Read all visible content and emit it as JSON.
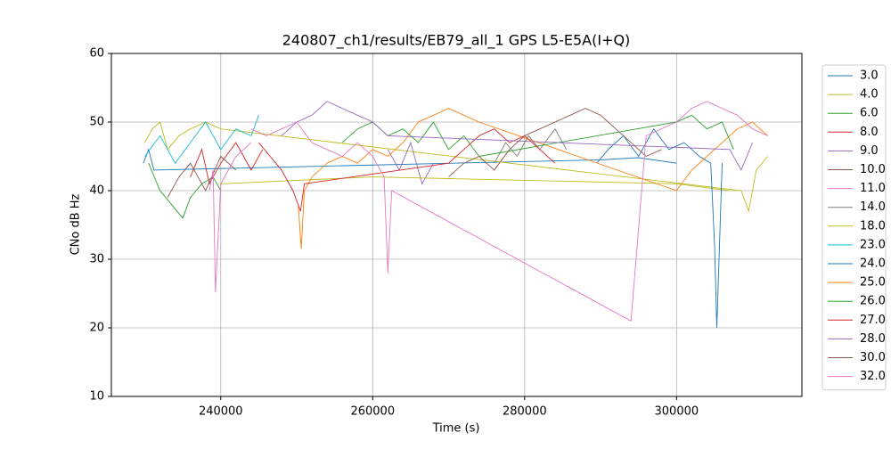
{
  "chart_data": {
    "type": "line",
    "title": "240807_ch1/results/EB79_all_1 GPS L5-E5A(I+Q)",
    "x_label": "Time (s)",
    "y_label": "CNo dB Hz",
    "xlim": [
      225600,
      316500
    ],
    "xticks": [
      240000,
      260000,
      280000,
      300000
    ],
    "ylim": [
      10,
      60
    ],
    "yticks": [
      10,
      20,
      30,
      40,
      50,
      60
    ],
    "grid": true,
    "legend": "outside-right",
    "series": [
      {
        "name": "3.0",
        "color": "#1f77b4",
        "x": [
          229800,
          230500,
          231200,
          290000,
          295000,
          300000
        ],
        "values": [
          44,
          46,
          43,
          44.5,
          44.8,
          44
        ]
      },
      {
        "name": "4.0",
        "color": "#bcbd22",
        "x": [
          230000,
          231000,
          232000,
          233000,
          234500,
          236000,
          238000,
          240000,
          308500,
          309500,
          310500,
          312000
        ],
        "values": [
          47,
          49,
          50,
          46,
          48,
          49,
          50,
          49,
          40,
          37,
          43,
          45
        ]
      },
      {
        "name": "6.0",
        "color": "#2ca02c",
        "x": [
          230500,
          232000,
          233500,
          235000,
          236000,
          237500,
          239000,
          240000
        ],
        "values": [
          44,
          40,
          38,
          36,
          39,
          41,
          42,
          40
        ]
      },
      {
        "name": "8.0",
        "color": "#d62728",
        "x": [
          236000,
          237500,
          238500,
          240000,
          242000,
          244000,
          245500
        ],
        "values": [
          42,
          46,
          41,
          44,
          47,
          43,
          46
        ]
      },
      {
        "name": "9.0",
        "color": "#9467bd",
        "x": [
          262000,
          263500,
          265000,
          266500,
          268000
        ],
        "values": [
          46,
          43,
          47,
          41,
          44
        ]
      },
      {
        "name": "10.0",
        "color": "#8c564b",
        "x": [
          233000,
          234500,
          236000,
          238000,
          240000,
          242000
        ],
        "values": [
          39,
          42,
          44,
          40,
          45,
          43
        ]
      },
      {
        "name": "11.0",
        "color": "#e377c2",
        "x": [
          238500,
          239000,
          239300,
          240000,
          242000,
          244000
        ],
        "values": [
          40,
          43,
          25.2,
          41,
          45,
          47
        ]
      },
      {
        "name": "14.0",
        "color": "#7f7f7f",
        "x": [
          276000,
          277500,
          279000,
          280500,
          282000,
          284000,
          285500
        ],
        "values": [
          44,
          47,
          45,
          48,
          46,
          49,
          46
        ]
      },
      {
        "name": "18.0",
        "color": "#bcbd22",
        "x": [
          240000,
          260000,
          280000,
          300000,
          307000
        ],
        "values": [
          41,
          42,
          41.5,
          41,
          40
        ]
      },
      {
        "name": "23.0",
        "color": "#17becf",
        "x": [
          230000,
          232000,
          234000,
          236000,
          238000,
          240000,
          242000,
          244000,
          245000
        ],
        "values": [
          45,
          48,
          44,
          47,
          50,
          46,
          49,
          48,
          51
        ]
      },
      {
        "name": "24.0",
        "color": "#1f77b4",
        "x": [
          289500,
          291000,
          293000,
          295000,
          297000,
          299000,
          301000,
          303000,
          304500,
          305000,
          305300,
          306000
        ],
        "values": [
          44,
          46,
          48,
          45,
          49,
          46,
          47,
          45,
          44,
          32,
          20,
          44
        ]
      },
      {
        "name": "25.0",
        "color": "#ff7f0e",
        "x": [
          250200,
          250600,
          251000,
          252000,
          254000,
          256000,
          258000,
          260000,
          262000,
          264000,
          266000,
          268000,
          270000,
          272000,
          274000,
          300000,
          302000,
          304000,
          306000,
          308000,
          310000,
          312000
        ],
        "values": [
          38,
          31.5,
          40,
          42,
          44,
          45,
          44,
          46,
          45,
          47,
          50,
          51,
          52,
          51,
          50,
          40,
          43,
          45,
          47,
          49,
          50,
          48
        ]
      },
      {
        "name": "26.0",
        "color": "#2ca02c",
        "x": [
          256000,
          258000,
          260000,
          262000,
          264000,
          266000,
          268000,
          270000,
          272000,
          274000,
          300000,
          302000,
          304000,
          306000,
          307500
        ],
        "values": [
          47,
          49,
          50,
          48,
          49,
          47,
          50,
          46,
          48,
          45,
          50,
          51,
          49,
          50,
          46
        ]
      },
      {
        "name": "27.0",
        "color": "#d62728",
        "x": [
          245000,
          246500,
          248000,
          249500,
          250500,
          251000,
          270000,
          272000,
          274000,
          276000,
          278000,
          280000,
          282000,
          284000
        ],
        "values": [
          47,
          45,
          43,
          40,
          37,
          41,
          44,
          46,
          48,
          49,
          47,
          48,
          46,
          44
        ]
      },
      {
        "name": "28.0",
        "color": "#9467bd",
        "x": [
          248000,
          250000,
          252000,
          254000,
          256000,
          258000,
          260000,
          262000,
          307000,
          308500,
          310000
        ],
        "values": [
          48,
          50,
          51,
          53,
          52,
          51,
          50,
          48,
          46,
          43,
          47
        ]
      },
      {
        "name": "30.0",
        "color": "#8c564b",
        "x": [
          270000,
          272000,
          274000,
          276000,
          278000,
          280000,
          282000,
          284000,
          286000,
          288000,
          290000,
          292000,
          294000,
          296000,
          298000
        ],
        "values": [
          42,
          44,
          45,
          43,
          46,
          48,
          49,
          50,
          51,
          52,
          51,
          49,
          47,
          45,
          46
        ]
      },
      {
        "name": "32.0",
        "color": "#e377c2",
        "x": [
          244000,
          246000,
          248000,
          250000,
          252000,
          254000,
          256000,
          258000,
          260000,
          261500,
          262000,
          262500,
          294000,
          296000,
          300000,
          302000,
          304000,
          306000,
          308000,
          310000,
          312000
        ],
        "values": [
          49,
          48,
          49,
          50,
          47,
          46,
          45,
          47,
          45,
          42,
          28,
          40,
          21,
          48,
          50,
          52,
          53,
          52,
          51,
          49,
          48
        ]
      }
    ]
  }
}
